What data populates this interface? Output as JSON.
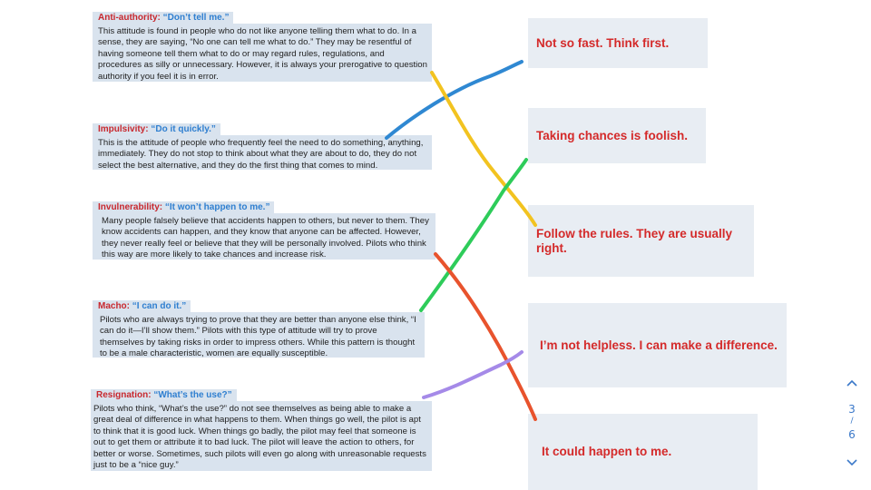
{
  "attitudes": [
    {
      "name": "Anti-authority:",
      "quote": "“Don’t tell me.”",
      "text": "This attitude is found in people who do not like anyone telling them what to do. In a sense, they are saying, “No one can tell me what to do.” They may be resentful of having someone tell them what to do or may regard rules, regulations, and procedures as silly or unnecessary. However, it is always your prerogative to question authority if you feel it is in error."
    },
    {
      "name": "Impulsivity:",
      "quote": "“Do it quickly.”",
      "text": "This is the attitude of people who frequently feel the need to do something, anything, immediately. They do not stop to think about what they are about to do, they do not select the best alternative, and they do the first thing that comes to mind."
    },
    {
      "name": "Invulnerability:",
      "quote": "“It won’t happen to me.”",
      "text": "Many people falsely believe that accidents happen to others, but never to them. They know accidents can happen, and they know that anyone can be affected. However, they never really feel or believe that they will be personally involved. Pilots who think this way are more likely to take chances and increase risk."
    },
    {
      "name": "Macho:",
      "quote": "“I can do it.”",
      "text": "Pilots who are always trying to prove that they are better than anyone else think, “I can do it—I’ll show them.” Pilots with this type of attitude will try to prove themselves by taking risks in order to impress others. While this pattern is thought to be a male characteristic, women are equally susceptible."
    },
    {
      "name": "Resignation:",
      "quote": "“What’s the use?”",
      "text": "Pilots who think, “What’s the use?” do not see themselves as being able to make a great deal of difference in what happens to them. When things go well, the pilot is apt to think that it is good luck. When things go badly, the pilot may feel that someone is out to get them or attribute it to bad luck. The pilot will leave the action to others, for better or worse. Sometimes, such pilots will even go along with unreasonable requests just to be a “nice guy.”"
    }
  ],
  "antidotes": [
    "Not so fast. Think first.",
    "Taking chances is foolish.",
    "Follow the rules. They are usually right.",
    "I’m not helpless. I can make a difference.",
    "It could happen to me."
  ],
  "colors": {
    "line_blue": "#2f88d2",
    "line_yellow": "#f2c320",
    "line_green": "#2ecc5a",
    "line_orange": "#e8532d",
    "line_purple": "#a58ae8",
    "card_bg": "#d9e3ee",
    "answer_bg": "#e8edf3",
    "accent_red": "#c8282e",
    "accent_blue": "#2f7fd0"
  },
  "pager": {
    "current": "3",
    "separator": "/",
    "total": "6",
    "up_icon": "chevron-up-icon",
    "down_icon": "chevron-down-icon"
  }
}
